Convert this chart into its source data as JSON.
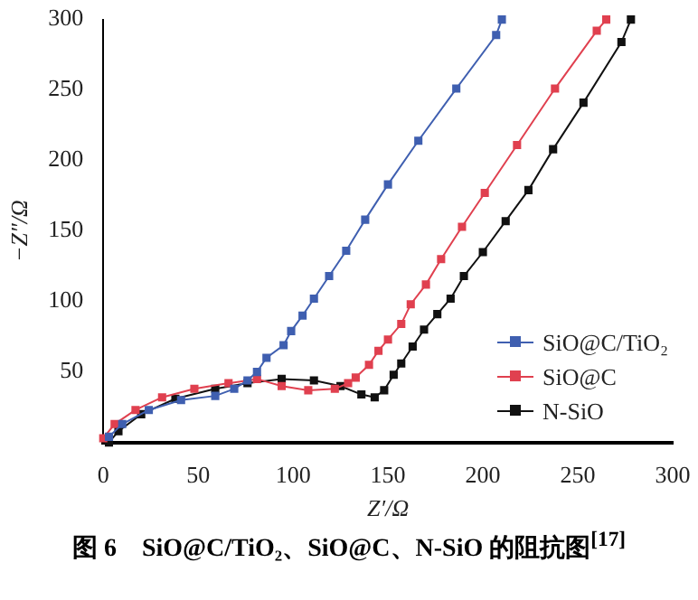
{
  "chart_data": {
    "type": "line",
    "title": "图 6　SiO@C/TiO₂、SiO@C、N-SiO 的阻抗图$^{[17]}$",
    "xlabel": "Z′/Ω",
    "ylabel": "−Z″/Ω",
    "xlim": [
      0,
      300
    ],
    "xticks": [
      0,
      50,
      100,
      150,
      200,
      250,
      300
    ],
    "ylim": [
      0,
      300
    ],
    "yticks": [
      50,
      100,
      150,
      200,
      250,
      300
    ],
    "grid": false,
    "legend": "bottom right",
    "marker": "square",
    "line_style": "solid",
    "series": [
      {
        "name": "SiO@C/TiO₂",
        "color": "#3f5fb0",
        "x": [
          3,
          10,
          24,
          41,
          59,
          69,
          76,
          81,
          86,
          95,
          99,
          105,
          111,
          119,
          128,
          138,
          150,
          166,
          186,
          207,
          210
        ],
        "values": [
          4,
          13,
          23,
          30,
          33,
          38,
          44,
          50,
          60,
          69,
          79,
          90,
          102,
          118,
          136,
          158,
          183,
          214,
          251,
          289,
          300
        ]
      },
      {
        "name": "SiO@C",
        "color": "#e0404f",
        "x": [
          0,
          6,
          17,
          31,
          48,
          66,
          81,
          94,
          108,
          122,
          129,
          133,
          140,
          145,
          150,
          157,
          162,
          170,
          178,
          189,
          201,
          218,
          238,
          260,
          265
        ],
        "values": [
          3,
          13,
          23,
          32,
          38,
          42,
          45,
          40,
          37,
          38,
          42,
          46,
          55,
          65,
          73,
          84,
          98,
          112,
          130,
          153,
          177,
          211,
          251,
          292,
          300
        ]
      },
      {
        "name": "N-SiO",
        "color": "#111111",
        "x": [
          3,
          8,
          20,
          38,
          59,
          76,
          94,
          111,
          125,
          136,
          143,
          148,
          153,
          157,
          163,
          169,
          176,
          183,
          190,
          200,
          212,
          224,
          237,
          253,
          273,
          278
        ],
        "values": [
          0,
          8,
          20,
          31,
          38,
          42,
          45,
          44,
          40,
          34,
          32,
          37,
          48,
          56,
          68,
          80,
          91,
          102,
          118,
          135,
          157,
          179,
          208,
          241,
          284,
          300
        ]
      }
    ]
  }
}
